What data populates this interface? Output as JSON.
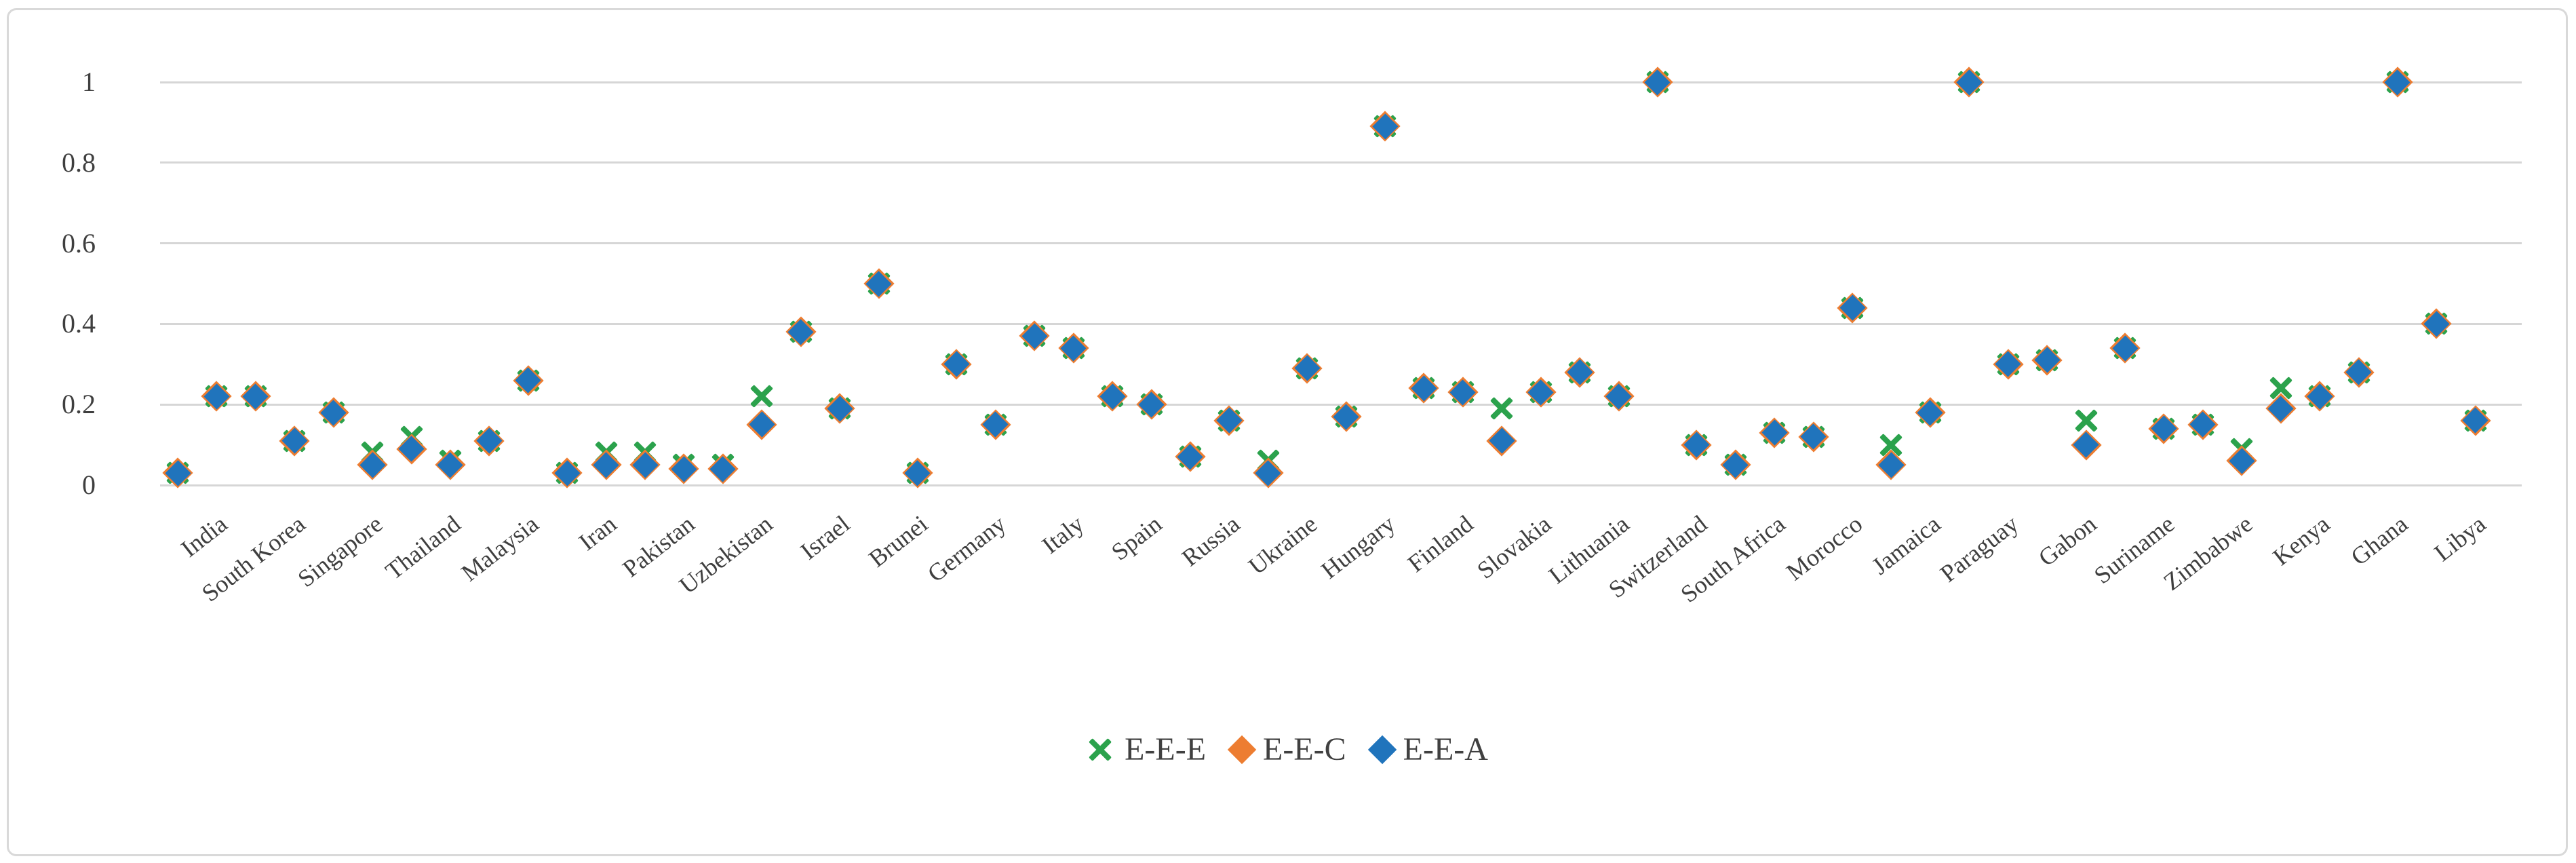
{
  "chart_data": {
    "type": "scatter",
    "title": "",
    "xlabel": "",
    "ylabel": "",
    "ylim": [
      0,
      1
    ],
    "grid": "horizontal",
    "legend_position": "bottom-center",
    "yticks": [
      {
        "value": 0,
        "label": "0"
      },
      {
        "value": 0.2,
        "label": "0.2"
      },
      {
        "value": 0.4,
        "label": "0.4"
      },
      {
        "value": 0.6,
        "label": "0.6"
      },
      {
        "value": 0.8,
        "label": "0.8"
      },
      {
        "value": 1,
        "label": "1"
      }
    ],
    "categories": [
      "India",
      "South Korea",
      "Singapore",
      "Thailand",
      "Malaysia",
      "Iran",
      "Pakistan",
      "Uzbekistan",
      "Israel",
      "Brunei",
      "Germany",
      "Italy",
      "Spain",
      "Russia",
      "Ukraine",
      "Hungary",
      "Finland",
      "Slovakia",
      "Lithuania",
      "Switzerland",
      "South Africa",
      "Morocco",
      "Jamaica",
      "Paraguay",
      "Gabon",
      "Suriname",
      "Zimbabwe",
      "Kenya",
      "Ghana",
      "Libya"
    ],
    "points_per_category": 2,
    "series": [
      {
        "name": "E-E-E",
        "marker": "x",
        "color": "#2BA24C",
        "values": [
          0.03,
          0.22,
          0.22,
          0.11,
          0.18,
          0.08,
          0.12,
          0.06,
          0.11,
          0.26,
          0.03,
          0.08,
          0.08,
          0.05,
          0.05,
          0.22,
          0.38,
          0.19,
          0.5,
          0.03,
          0.3,
          0.15,
          0.37,
          0.34,
          0.22,
          0.2,
          0.07,
          0.16,
          0.06,
          0.29,
          0.17,
          0.89,
          0.24,
          0.23,
          0.19,
          0.23,
          0.28,
          0.22,
          1.0,
          0.1,
          0.05,
          0.13,
          0.12,
          0.44,
          0.1,
          0.18,
          1.0,
          0.3,
          0.31,
          0.16,
          0.34,
          0.14,
          0.15,
          0.09,
          0.24,
          0.22,
          0.28,
          1.0,
          0.4,
          0.16
        ]
      },
      {
        "name": "E-E-C",
        "marker": "diamond",
        "color": "#ED7D31",
        "values": [
          0.03,
          0.22,
          0.22,
          0.11,
          0.18,
          0.05,
          0.09,
          0.05,
          0.11,
          0.26,
          0.03,
          0.05,
          0.05,
          0.04,
          0.04,
          0.15,
          0.38,
          0.19,
          0.5,
          0.03,
          0.3,
          0.15,
          0.37,
          0.34,
          0.22,
          0.2,
          0.07,
          0.16,
          0.03,
          0.29,
          0.17,
          0.89,
          0.24,
          0.23,
          0.11,
          0.23,
          0.28,
          0.22,
          1.0,
          0.1,
          0.05,
          0.13,
          0.12,
          0.44,
          0.05,
          0.18,
          1.0,
          0.3,
          0.31,
          0.1,
          0.34,
          0.14,
          0.15,
          0.06,
          0.19,
          0.22,
          0.28,
          1.0,
          0.4,
          0.16
        ]
      },
      {
        "name": "E-E-A",
        "marker": "diamond",
        "color": "#2074BC",
        "values": [
          0.03,
          0.22,
          0.22,
          0.11,
          0.18,
          0.05,
          0.09,
          0.05,
          0.11,
          0.26,
          0.03,
          0.05,
          0.05,
          0.04,
          0.04,
          0.15,
          0.38,
          0.19,
          0.5,
          0.03,
          0.3,
          0.15,
          0.37,
          0.34,
          0.22,
          0.2,
          0.07,
          0.16,
          0.03,
          0.29,
          0.17,
          0.89,
          0.24,
          0.23,
          0.11,
          0.23,
          0.28,
          0.22,
          1.0,
          0.1,
          0.05,
          0.13,
          0.12,
          0.44,
          0.05,
          0.18,
          1.0,
          0.3,
          0.31,
          0.1,
          0.34,
          0.14,
          0.15,
          0.06,
          0.19,
          0.22,
          0.28,
          1.0,
          0.4,
          0.16
        ]
      }
    ]
  }
}
